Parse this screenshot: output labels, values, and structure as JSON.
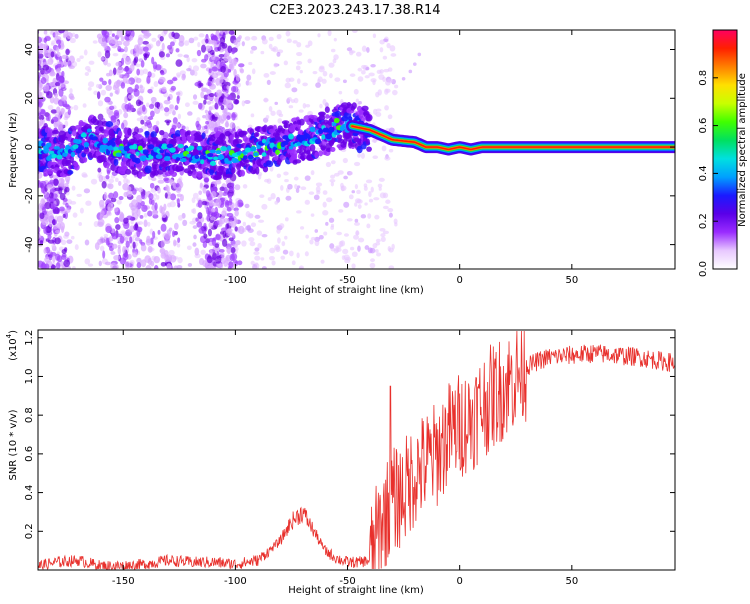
{
  "figure": {
    "title": "C2E3.2023.243.17.38.R14"
  },
  "chart_data": [
    {
      "type": "heatmap",
      "id": "spectrogram",
      "xlabel": "Height of straight line (km)",
      "ylabel": "Frequency (Hz)",
      "xlim": [
        -188,
        96
      ],
      "ylim": [
        -50,
        48
      ],
      "x_ticks": [
        -150,
        -100,
        -50,
        0,
        50
      ],
      "y_ticks": [
        -40,
        -20,
        0,
        20,
        40
      ],
      "grid": false,
      "ridge": {
        "description_points_x": [
          -188,
          -175,
          -165,
          -150,
          -140,
          -130,
          -120,
          -110,
          -100,
          -90,
          -80,
          -70,
          -60,
          -55,
          -50,
          -45,
          -40,
          -35,
          -30,
          -20,
          -15,
          -10,
          -5,
          0,
          5,
          10,
          50,
          96
        ],
        "description_points_y": [
          -1,
          -3,
          4,
          -2,
          -3,
          -2,
          -3,
          -4,
          -3,
          -1,
          1,
          3,
          6,
          8,
          9,
          8,
          7,
          5,
          3,
          2,
          0,
          0,
          -1,
          0,
          -1,
          0,
          0,
          0
        ]
      },
      "vertical_bands_x": [
        -193,
        -175,
        -160,
        -125,
        -115,
        -100
      ],
      "colorbar": {
        "label": "Normalized spectral amplitude",
        "min": 0.0,
        "max": 1.0,
        "ticks": [
          0.0,
          0.2,
          0.4,
          0.6,
          0.8
        ],
        "tick_labels": [
          "0.0",
          "0.2",
          "0.4",
          "0.6",
          "0.8"
        ],
        "colormap": [
          "#ffffff",
          "#e8c8ff",
          "#9a2cff",
          "#5a00e8",
          "#1a1aff",
          "#00a0ff",
          "#00e0e0",
          "#00e060",
          "#40ff00",
          "#c8ff00",
          "#ffe000",
          "#ff8000",
          "#ff2000",
          "#ff0060"
        ]
      }
    },
    {
      "type": "line",
      "id": "snr",
      "xlabel": "Height of straight line (km)",
      "ylabel": "SNR (10 * v/v)",
      "y_scale_label": "(x10",
      "y_scale_exponent": "4",
      "y_scale_suffix": ")",
      "xlim": [
        -188,
        96
      ],
      "ylim": [
        0,
        1.24
      ],
      "x_ticks": [
        -150,
        -100,
        -50,
        0,
        50
      ],
      "y_ticks": [
        0.2,
        0.4,
        0.6,
        0.8,
        1.0,
        1.2
      ],
      "y_tick_labels": [
        "0.2",
        "0.4",
        "0.6",
        "0.8",
        "1.0",
        "1.2"
      ],
      "line_color": "#e8302c",
      "series": [
        {
          "x": [
            -188,
            -180,
            -170,
            -160,
            -150,
            -140,
            -130,
            -120,
            -110,
            -100,
            -95,
            -90,
            -85,
            -80,
            -75,
            -70,
            -65,
            -60,
            -55,
            -50,
            -45,
            -40,
            -35,
            -30,
            -25,
            -20,
            -15,
            -10,
            -5,
            0,
            5,
            10,
            15,
            20,
            25,
            30,
            35,
            40,
            50,
            60,
            70,
            80,
            90,
            96
          ],
          "y": [
            0.02,
            0.04,
            0.05,
            0.02,
            0.02,
            0.03,
            0.05,
            0.04,
            0.04,
            0.03,
            0.04,
            0.05,
            0.1,
            0.15,
            0.25,
            0.3,
            0.2,
            0.1,
            0.06,
            0.04,
            0.04,
            0.05,
            0.25,
            0.35,
            0.4,
            0.5,
            0.55,
            0.6,
            0.7,
            0.75,
            0.78,
            0.85,
            0.9,
            0.95,
            1.0,
            1.05,
            1.08,
            1.1,
            1.11,
            1.12,
            1.11,
            1.1,
            1.08,
            1.07
          ]
        }
      ]
    }
  ]
}
